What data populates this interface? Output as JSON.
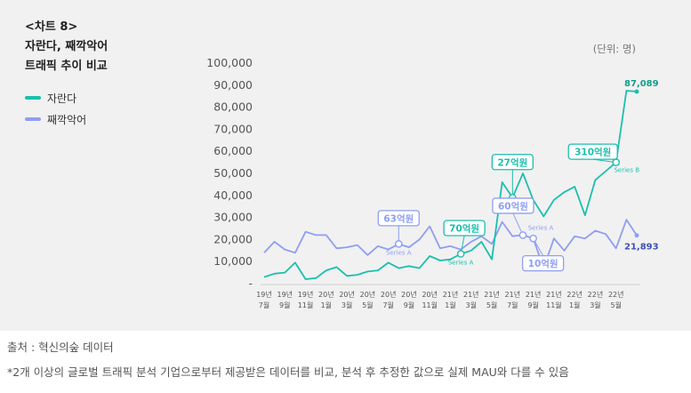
{
  "header": {
    "tag": "<차트 8>",
    "title_line1": "자란다, 째깍악어",
    "title_line2": "트래픽 추이 비교"
  },
  "unit_label": "(단위: 명)",
  "footer": {
    "source": "출처 : 혁신의숲 데이터",
    "note": "*2개 이상의 글로벌 트래픽 분석 기업으로부터 제공받은 데이터를 비교, 분석 후 추정한 값으로 실제 MAU와 다를 수 있음"
  },
  "colors": {
    "jaranda": "#1bbfad",
    "jjakkak": "#8f9ef2",
    "background": "#f1f1f1"
  },
  "chart_data": {
    "type": "line",
    "ylim": [
      0,
      100000
    ],
    "yticks": [
      0,
      10000,
      20000,
      30000,
      40000,
      50000,
      60000,
      70000,
      80000,
      90000,
      100000
    ],
    "ytick_labels": [
      "-",
      "10,000",
      "20,000",
      "30,000",
      "40,000",
      "50,000",
      "60,000",
      "70,000",
      "80,000",
      "90,000",
      "100,000"
    ],
    "tick_labels": [
      {
        "year": "19년",
        "month": "7월"
      },
      {
        "year": "19년",
        "month": "9월"
      },
      {
        "year": "19년",
        "month": "11월"
      },
      {
        "year": "20년",
        "month": "1월"
      },
      {
        "year": "20년",
        "month": "3월"
      },
      {
        "year": "20년",
        "month": "5월"
      },
      {
        "year": "20년",
        "month": "7월"
      },
      {
        "year": "20년",
        "month": "9월"
      },
      {
        "year": "20년",
        "month": "11월"
      },
      {
        "year": "21년",
        "month": "1월"
      },
      {
        "year": "21년",
        "month": "3월"
      },
      {
        "year": "21년",
        "month": "5월"
      },
      {
        "year": "21년",
        "month": "7월"
      },
      {
        "year": "21년",
        "month": "9월"
      },
      {
        "year": "21년",
        "month": "11월"
      },
      {
        "year": "22년",
        "month": "1월"
      },
      {
        "year": "22년",
        "month": "3월"
      },
      {
        "year": "22년",
        "month": "5월"
      }
    ],
    "series": [
      {
        "name": "자란다",
        "color": "#1bbfad",
        "values": [
          3000,
          4500,
          5000,
          9500,
          2000,
          2500,
          6000,
          7500,
          3500,
          4000,
          5500,
          6000,
          9500,
          7000,
          8000,
          7000,
          12500,
          10500,
          11000,
          13500,
          15000,
          19000,
          11000,
          46000,
          39000,
          50000,
          38000,
          30500,
          38000,
          41500,
          44000,
          31000,
          47000,
          51000,
          55000,
          87500,
          87089
        ],
        "end_label": "87,089"
      },
      {
        "name": "째깍악어",
        "color": "#8f9ef2",
        "values": [
          14000,
          19000,
          15500,
          14000,
          23500,
          22000,
          22000,
          16000,
          16500,
          17500,
          13000,
          17000,
          15500,
          18000,
          16500,
          20000,
          26000,
          16000,
          17000,
          15500,
          19000,
          21500,
          18000,
          28000,
          21500,
          22000,
          20500,
          7000,
          20500,
          15000,
          21500,
          20500,
          24000,
          22500,
          16000,
          29000,
          21893
        ],
        "end_label": "21,893"
      }
    ],
    "annotations": [
      {
        "label": "63억원",
        "series_name": "Series A",
        "series": 1,
        "index": 13
      },
      {
        "label": "70억원",
        "series_name": "Series A",
        "series": 0,
        "index": 19
      },
      {
        "label": "27억원",
        "series_name": "Series A",
        "series": 0,
        "index": 24
      },
      {
        "label": "60억원",
        "series_name": "Series A",
        "series": 1,
        "index": 25
      },
      {
        "label": "10억원",
        "series_name": "",
        "series": 1,
        "index": 26
      },
      {
        "label": "310억원",
        "series_name": "Series B",
        "series": 0,
        "index": 34
      }
    ]
  }
}
